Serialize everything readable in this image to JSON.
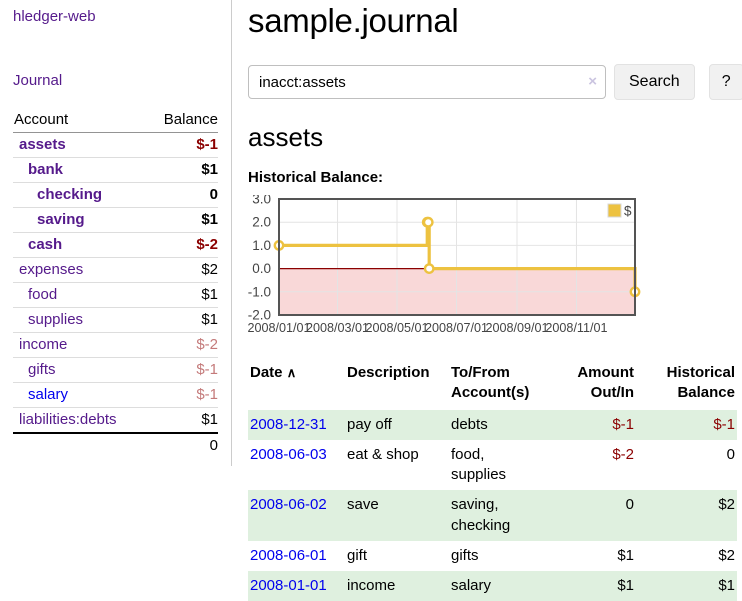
{
  "sidebar": {
    "brand": "hledger-web",
    "journal_link": "Journal",
    "accounts": {
      "header_account": "Account",
      "header_balance": "Balance",
      "rows": [
        {
          "name": "assets",
          "balance": "$-1",
          "indent": 0,
          "bold": true,
          "balance_style": "neg-strong",
          "link_style": "visited"
        },
        {
          "name": "bank",
          "balance": "$1",
          "indent": 1,
          "bold": true,
          "balance_style": "pos",
          "link_style": "visited"
        },
        {
          "name": "checking",
          "balance": "0",
          "indent": 2,
          "bold": true,
          "balance_style": "pos",
          "link_style": "visited"
        },
        {
          "name": "saving",
          "balance": "$1",
          "indent": 2,
          "bold": true,
          "balance_style": "pos",
          "link_style": "visited"
        },
        {
          "name": "cash",
          "balance": "$-2",
          "indent": 1,
          "bold": true,
          "balance_style": "neg-strong",
          "link_style": "visited"
        },
        {
          "name": "expenses",
          "balance": "$2",
          "indent": 0,
          "bold": false,
          "balance_style": "pos",
          "link_style": "visited"
        },
        {
          "name": "food",
          "balance": "$1",
          "indent": 1,
          "bold": false,
          "balance_style": "pos",
          "link_style": "visited"
        },
        {
          "name": "supplies",
          "balance": "$1",
          "indent": 1,
          "bold": false,
          "balance_style": "pos",
          "link_style": "visited"
        },
        {
          "name": "income",
          "balance": "$-2",
          "indent": 0,
          "bold": false,
          "balance_style": "neg-muted",
          "link_style": "visited"
        },
        {
          "name": "gifts",
          "balance": "$-1",
          "indent": 1,
          "bold": false,
          "balance_style": "neg-muted",
          "link_style": "visited"
        },
        {
          "name": "salary",
          "balance": "$-1",
          "indent": 1,
          "bold": false,
          "balance_style": "neg-muted",
          "link_style": "unvisited"
        },
        {
          "name": "liabilities:debts",
          "balance": "$1",
          "indent": 0,
          "bold": false,
          "balance_style": "pos",
          "link_style": "visited"
        }
      ],
      "total": "0"
    }
  },
  "main": {
    "title": "sample.journal",
    "search": {
      "value": "inacct:assets",
      "clear_icon": "×",
      "search_button": "Search",
      "help_button": "?"
    },
    "account_heading": "assets",
    "chart_label": "Historical Balance:"
  },
  "chart_data": {
    "type": "line",
    "step": true,
    "title": "Historical Balance",
    "xlabel": "",
    "ylabel": "",
    "xlim": [
      "2008-01-01",
      "2008-12-31"
    ],
    "ylim": [
      -2,
      3
    ],
    "x_ticks": [
      "2008/01/01",
      "2008/03/01",
      "2008/05/01",
      "2008/07/01",
      "2008/09/01",
      "2008/11/01"
    ],
    "y_ticks": [
      3,
      2,
      1,
      0,
      -1,
      -2
    ],
    "series": [
      {
        "name": "$",
        "color": "#edc240",
        "points": [
          [
            "2008-01-01",
            1
          ],
          [
            "2008-06-01",
            2
          ],
          [
            "2008-06-02",
            2
          ],
          [
            "2008-06-03",
            0
          ],
          [
            "2008-12-31",
            -1
          ]
        ]
      }
    ],
    "legend": {
      "label": "$",
      "position": "top-right"
    },
    "grid": true,
    "negative_region_color": "#f9d8d8",
    "zero_line_color": "#8b0000"
  },
  "register": {
    "headers": {
      "date": "Date",
      "sort_indicator": "∧",
      "description": "Description",
      "accounts": "To/From Account(s)",
      "amount": "Amount Out/In",
      "balance": "Historical Balance"
    },
    "rows": [
      {
        "date": "2008-12-31",
        "description": "pay off",
        "accounts": "debts",
        "amount": "$-1",
        "amount_style": "neg",
        "balance": "$-1",
        "balance_style": "neg",
        "highlight": true
      },
      {
        "date": "2008-06-03",
        "description": "eat & shop",
        "accounts": "food, supplies",
        "amount": "$-2",
        "amount_style": "neg",
        "balance": "0",
        "balance_style": "pos",
        "highlight": false
      },
      {
        "date": "2008-06-02",
        "description": "save",
        "accounts": "saving, checking",
        "amount": "0",
        "amount_style": "pos",
        "balance": "$2",
        "balance_style": "pos",
        "highlight": true
      },
      {
        "date": "2008-06-01",
        "description": "gift",
        "accounts": "gifts",
        "amount": "$1",
        "amount_style": "pos",
        "balance": "$2",
        "balance_style": "pos",
        "highlight": false
      },
      {
        "date": "2008-01-01",
        "description": "income",
        "accounts": "salary",
        "amount": "$1",
        "amount_style": "pos",
        "balance": "$1",
        "balance_style": "pos",
        "highlight": true
      }
    ]
  },
  "colors": {
    "link_visited": "#551a8b",
    "link_unvisited": "#0000ee",
    "negative_strong": "#8b0000",
    "negative_muted": "#c47a7a",
    "row_highlight": "#dff0df",
    "series_gold": "#edc240",
    "negative_region": "#f9d8d8",
    "zero_line": "#8b0000"
  }
}
